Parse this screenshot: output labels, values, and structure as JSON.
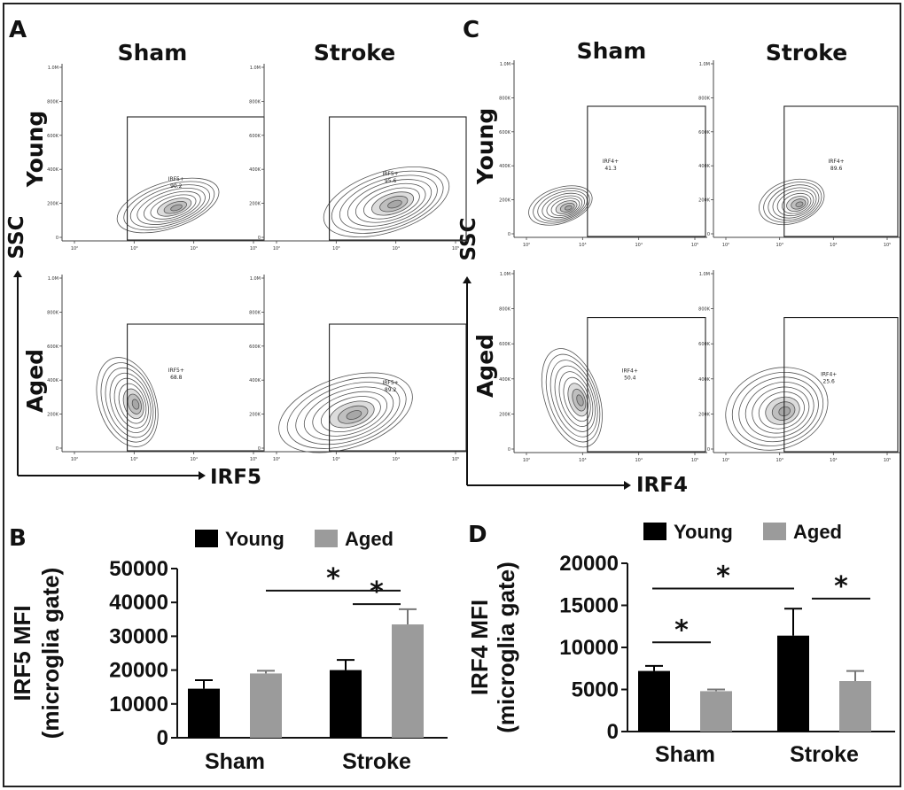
{
  "panels": {
    "A": "A",
    "B": "B",
    "C": "C",
    "D": "D"
  },
  "flow": [
    {
      "panel": "A",
      "col_labels": [
        "Sham",
        "Stroke"
      ],
      "row_labels": [
        "Young",
        "Aged"
      ],
      "y_axis": "SSC",
      "x_axis": "IRF5",
      "y_ticks": [
        "1.0M",
        "800K",
        "600K",
        "400K",
        "200K",
        "0"
      ],
      "x_ticks": [
        "10²",
        "10³",
        "10⁴",
        "10⁵"
      ],
      "plots": [
        {
          "gate": "IRF5+",
          "percent": "90.2"
        },
        {
          "gate": "IRF5+",
          "percent": "95.6"
        },
        {
          "gate": "IRF5+",
          "percent": "68.8"
        },
        {
          "gate": "IRF5+",
          "percent": "89.2"
        }
      ]
    },
    {
      "panel": "C",
      "col_labels": [
        "Sham",
        "Stroke"
      ],
      "row_labels": [
        "Young",
        "Aged"
      ],
      "y_axis": "SSC",
      "x_axis": "IRF4",
      "y_ticks": [
        "1.0M",
        "800K",
        "600K",
        "400K",
        "200K",
        "0"
      ],
      "x_ticks": [
        "10²",
        "10³",
        "10⁴",
        "10⁵"
      ],
      "plots": [
        {
          "gate": "IRF4+",
          "percent": "41.3"
        },
        {
          "gate": "IRF4+",
          "percent": "89.6"
        },
        {
          "gate": "IRF4+",
          "percent": "50.4"
        },
        {
          "gate": "IRF4+",
          "percent": "25.6"
        }
      ]
    }
  ],
  "chart_data": [
    {
      "panel": "B",
      "type": "bar",
      "categories": [
        "Sham",
        "Stroke"
      ],
      "series": [
        {
          "name": "Young",
          "color": "#000000",
          "values": [
            14500,
            20000
          ],
          "errors": [
            2500,
            3000
          ]
        },
        {
          "name": "Aged",
          "color": "#9b9b9b",
          "values": [
            19000,
            33500
          ],
          "errors": [
            800,
            4500
          ]
        }
      ],
      "ylabel": "IRF5 MFI\n(microglia gate)",
      "ylabel_lines": [
        "IRF5 MFI",
        "(microglia gate)"
      ],
      "ylim": [
        0,
        50000
      ],
      "yticks": [
        0,
        10000,
        20000,
        30000,
        40000,
        50000
      ],
      "ytick_labels": [
        "0",
        "10000",
        "20000",
        "30000",
        "40000",
        "50000"
      ],
      "legend": "top",
      "significance": [
        {
          "from": [
            "Sham",
            "Aged"
          ],
          "to": [
            "Stroke",
            "Aged"
          ],
          "level": 43500,
          "label": "*"
        },
        {
          "from": [
            "Stroke",
            "Young"
          ],
          "to": [
            "Stroke",
            "Aged"
          ],
          "level": 39500,
          "label": "*"
        }
      ]
    },
    {
      "panel": "D",
      "type": "bar",
      "categories": [
        "Sham",
        "Stroke"
      ],
      "series": [
        {
          "name": "Young",
          "color": "#000000",
          "values": [
            7200,
            11400
          ],
          "errors": [
            600,
            3200
          ]
        },
        {
          "name": "Aged",
          "color": "#9b9b9b",
          "values": [
            4800,
            6000
          ],
          "errors": [
            200,
            1200
          ]
        }
      ],
      "ylabel": "IRF4 MFI\n(microglia gate)",
      "ylabel_lines": [
        "IRF4 MFI",
        "(microglia gate)"
      ],
      "ylim": [
        0,
        20000
      ],
      "yticks": [
        0,
        5000,
        10000,
        15000,
        20000
      ],
      "ytick_labels": [
        "0",
        "5000",
        "10000",
        "15000",
        "20000"
      ],
      "legend": "top",
      "significance": [
        {
          "from": [
            "Sham",
            "Young"
          ],
          "to": [
            "Stroke",
            "Young"
          ],
          "level": 17000,
          "label": "*"
        },
        {
          "from": [
            "Sham",
            "Young"
          ],
          "to": [
            "Sham",
            "Aged"
          ],
          "level": 10600,
          "label": "*"
        },
        {
          "from": [
            "Stroke",
            "Young"
          ],
          "to": [
            "Stroke",
            "Aged"
          ],
          "level": 15800,
          "label": "*"
        }
      ]
    }
  ]
}
